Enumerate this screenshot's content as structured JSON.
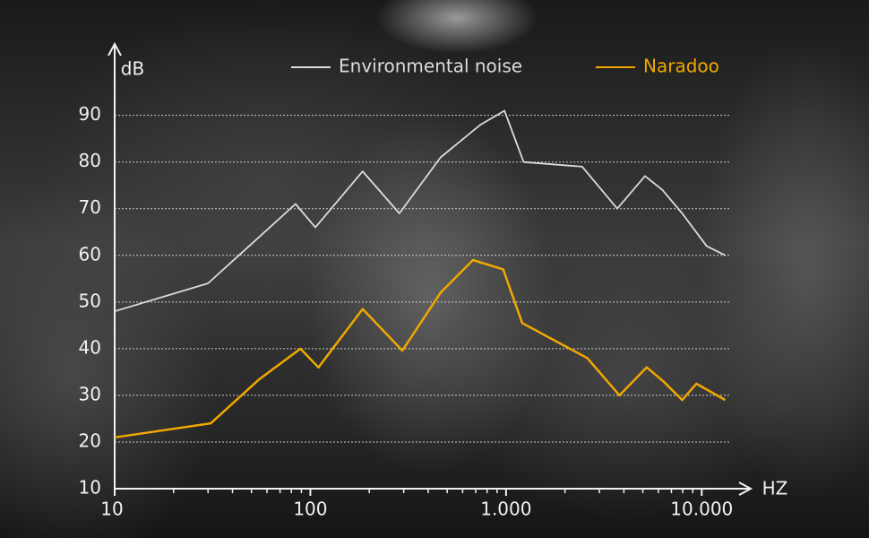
{
  "chart_data": {
    "type": "line",
    "y_label": "dB",
    "x_label": "HZ",
    "log_x": true,
    "grid": true,
    "xlim": [
      10,
      17800
    ],
    "xticks": [
      10,
      100,
      {
        "value": 1000,
        "label": "1.000"
      },
      {
        "value": 10000,
        "label": "10.000"
      }
    ],
    "xminorticks": [
      20,
      30,
      40,
      50,
      60,
      70,
      80,
      90,
      200,
      300,
      400,
      500,
      600,
      700,
      800,
      900,
      2000,
      3000,
      4000,
      5000,
      6000,
      7000,
      8000,
      9000
    ],
    "ylim": [
      10,
      105.5
    ],
    "yticks": [
      10,
      20,
      30,
      40,
      50,
      60,
      70,
      80,
      90
    ],
    "series": [
      {
        "name": "Environmental noise",
        "color": "#dcdcdc",
        "x": [
          10,
          30,
          84,
          106,
          185,
          285,
          463,
          740,
          982,
          1230,
          2450,
          3700,
          5130,
          6300,
          7950,
          10600,
          13200
        ],
        "values": [
          48,
          54,
          71,
          66,
          78,
          69,
          81,
          88,
          91,
          80,
          79,
          70,
          77,
          74,
          69,
          62,
          60
        ]
      },
      {
        "name": "Naradoo",
        "color": "#f0a800",
        "x": [
          10,
          31,
          55,
          89,
          110,
          185,
          295,
          463,
          677,
          967,
          1210,
          2600,
          3800,
          5230,
          6370,
          7950,
          9390,
          13200
        ],
        "values": [
          21,
          24,
          33.5,
          40,
          36,
          48.5,
          39.6,
          52,
          59,
          57,
          45.5,
          38,
          30,
          36,
          33,
          29,
          32.5,
          29
        ]
      }
    ]
  }
}
